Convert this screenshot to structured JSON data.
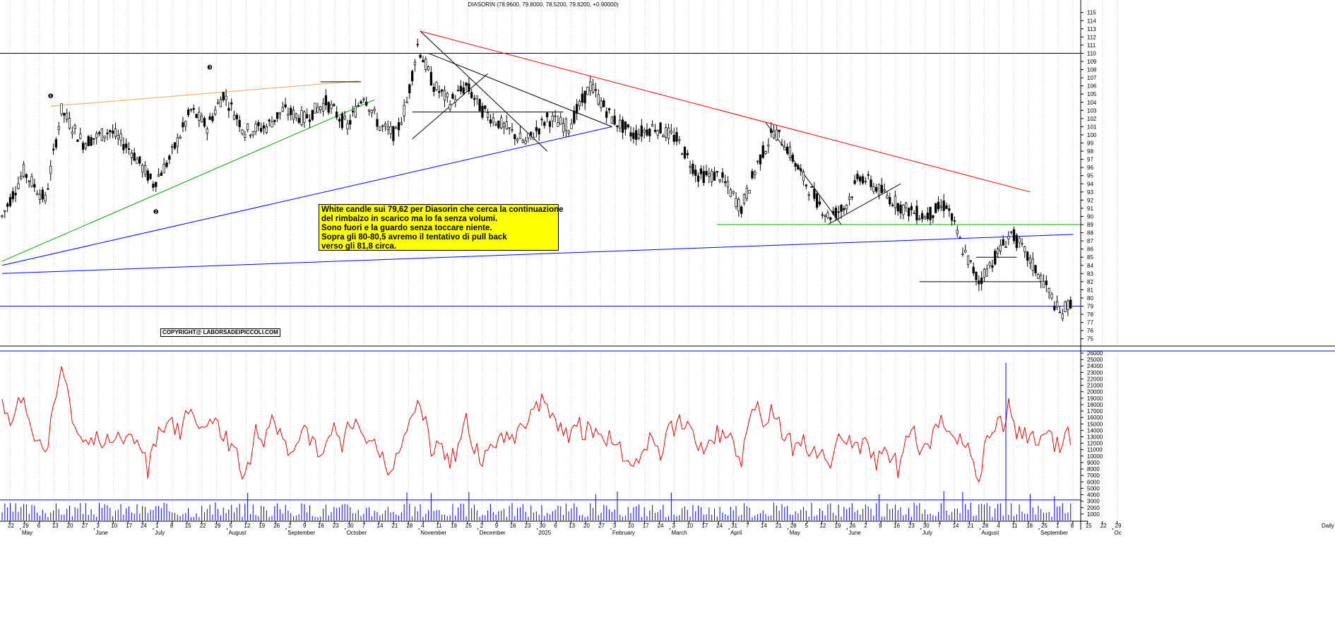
{
  "chart_data": [
    {
      "type": "candlestick",
      "title": "DIASORIN (78.9600, 79.8000, 78.5200, 79.6200, +0.90000)",
      "ylim": [
        74,
        116
      ],
      "y_ticks": [
        75,
        76,
        77,
        78,
        79,
        80,
        81,
        82,
        83,
        84,
        85,
        86,
        87,
        88,
        89,
        90,
        91,
        92,
        93,
        94,
        95,
        96,
        97,
        98,
        99,
        100,
        101,
        102,
        103,
        104,
        105,
        106,
        107,
        108,
        109,
        110,
        111,
        112,
        113,
        114,
        115
      ],
      "key_points": [
        {
          "t": 0,
          "v": 90
        },
        {
          "t": 8,
          "v": 95.5
        },
        {
          "t": 16,
          "v": 92
        },
        {
          "t": 22,
          "v": 103
        },
        {
          "t": 30,
          "v": 99
        },
        {
          "t": 40,
          "v": 100.5
        },
        {
          "t": 48,
          "v": 98
        },
        {
          "t": 56,
          "v": 94
        },
        {
          "t": 62,
          "v": 97
        },
        {
          "t": 70,
          "v": 103
        },
        {
          "t": 76,
          "v": 101
        },
        {
          "t": 82,
          "v": 105
        },
        {
          "t": 90,
          "v": 100.5
        },
        {
          "t": 98,
          "v": 101
        },
        {
          "t": 104,
          "v": 103
        },
        {
          "t": 112,
          "v": 102
        },
        {
          "t": 120,
          "v": 104
        },
        {
          "t": 128,
          "v": 101
        },
        {
          "t": 134,
          "v": 105
        },
        {
          "t": 140,
          "v": 101
        },
        {
          "t": 146,
          "v": 100
        },
        {
          "t": 150,
          "v": 104
        },
        {
          "t": 154,
          "v": 111
        },
        {
          "t": 160,
          "v": 106
        },
        {
          "t": 166,
          "v": 104
        },
        {
          "t": 172,
          "v": 106
        },
        {
          "t": 178,
          "v": 103
        },
        {
          "t": 186,
          "v": 101
        },
        {
          "t": 194,
          "v": 99
        },
        {
          "t": 202,
          "v": 102
        },
        {
          "t": 210,
          "v": 101
        },
        {
          "t": 218,
          "v": 106
        },
        {
          "t": 226,
          "v": 102
        },
        {
          "t": 234,
          "v": 100
        },
        {
          "t": 242,
          "v": 101
        },
        {
          "t": 250,
          "v": 99.5
        },
        {
          "t": 258,
          "v": 95
        },
        {
          "t": 266,
          "v": 95
        },
        {
          "t": 274,
          "v": 91
        },
        {
          "t": 280,
          "v": 96.5
        },
        {
          "t": 286,
          "v": 100.5
        },
        {
          "t": 290,
          "v": 99
        },
        {
          "t": 298,
          "v": 94
        },
        {
          "t": 306,
          "v": 90
        },
        {
          "t": 312,
          "v": 91
        },
        {
          "t": 318,
          "v": 95
        },
        {
          "t": 326,
          "v": 93
        },
        {
          "t": 334,
          "v": 91
        },
        {
          "t": 342,
          "v": 90
        },
        {
          "t": 350,
          "v": 91.5
        },
        {
          "t": 356,
          "v": 86
        },
        {
          "t": 362,
          "v": 82
        },
        {
          "t": 368,
          "v": 85
        },
        {
          "t": 374,
          "v": 88
        },
        {
          "t": 380,
          "v": 85
        },
        {
          "t": 386,
          "v": 82
        },
        {
          "t": 392,
          "v": 78
        },
        {
          "t": 396,
          "v": 79.5
        }
      ],
      "horizontal_lines": [
        110,
        79
      ]
    },
    {
      "type": "line",
      "ylim": [
        0,
        26500
      ],
      "y_ticks": [
        1000,
        2000,
        3000,
        4000,
        5000,
        6000,
        7000,
        8000,
        9000,
        10000,
        11000,
        12000,
        13000,
        14000,
        15000,
        16000,
        17000,
        18000,
        19000,
        20000,
        21000,
        22000,
        23000,
        24000,
        25000,
        26000
      ],
      "horizontal_lines": [
        3200
      ]
    }
  ],
  "x_axis": {
    "day_labels": [
      "22",
      "29",
      "6",
      "13",
      "20",
      "27",
      "3",
      "10",
      "17",
      "24",
      "1",
      "8",
      "15",
      "22",
      "29",
      "5",
      "12",
      "19",
      "26",
      "2",
      "9",
      "16",
      "23",
      "30",
      "7",
      "14",
      "21",
      "28",
      "4",
      "11",
      "18",
      "25",
      "2",
      "9",
      "16",
      "23",
      "30",
      "6",
      "13",
      "20",
      "27",
      "3",
      "10",
      "17",
      "24",
      "3",
      "10",
      "17",
      "24",
      "31",
      "7",
      "14",
      "21",
      "28",
      "5",
      "12",
      "19",
      "26",
      "2",
      "9",
      "16",
      "23",
      "30",
      "7",
      "14",
      "21",
      "28",
      "4",
      "11",
      "18",
      "25",
      "1",
      "8",
      "15",
      "22",
      "29"
    ],
    "months": [
      {
        "label": "May",
        "idx": 1
      },
      {
        "label": "June",
        "idx": 6
      },
      {
        "label": "July",
        "idx": 10
      },
      {
        "label": "August",
        "idx": 15
      },
      {
        "label": "September",
        "idx": 19
      },
      {
        "label": "October",
        "idx": 23
      },
      {
        "label": "November",
        "idx": 28
      },
      {
        "label": "December",
        "idx": 32
      },
      {
        "label": "2025",
        "idx": 36
      },
      {
        "label": "February",
        "idx": 41
      },
      {
        "label": "March",
        "idx": 45
      },
      {
        "label": "April",
        "idx": 49
      },
      {
        "label": "May",
        "idx": 53
      },
      {
        "label": "June",
        "idx": 57
      },
      {
        "label": "July",
        "idx": 62
      },
      {
        "label": "August",
        "idx": 66
      },
      {
        "label": "September",
        "idx": 70
      },
      {
        "label": "Oc",
        "idx": 75
      }
    ],
    "right_edge_label": "Daily"
  },
  "annotation": {
    "lines": [
      "White candle sui 79,62 per Diasorin che cerca la continuazione",
      "del rimbalzo in scarico ma lo fa senza volumi.",
      "Sono fuori e la guardo senza toccare niente.",
      "Sopra gli 80-80,5 avremo il tentativo di pull back",
      "verso gli 81,8 circa."
    ]
  },
  "copyright": "COPYRIGHT@ LABORSADEIPICCOLI.COM",
  "wave_labels": [
    "❶",
    "❷",
    "❸"
  ],
  "colors": {
    "candle": "#000000",
    "oscillator": "#ff0000",
    "volume": "#0000ff",
    "trend_red": "#ff0000",
    "trend_orange": "#f4a460",
    "trend_green": "#00aa00",
    "trend_blue": "#0000ff",
    "note_bg": "#ffff00"
  }
}
